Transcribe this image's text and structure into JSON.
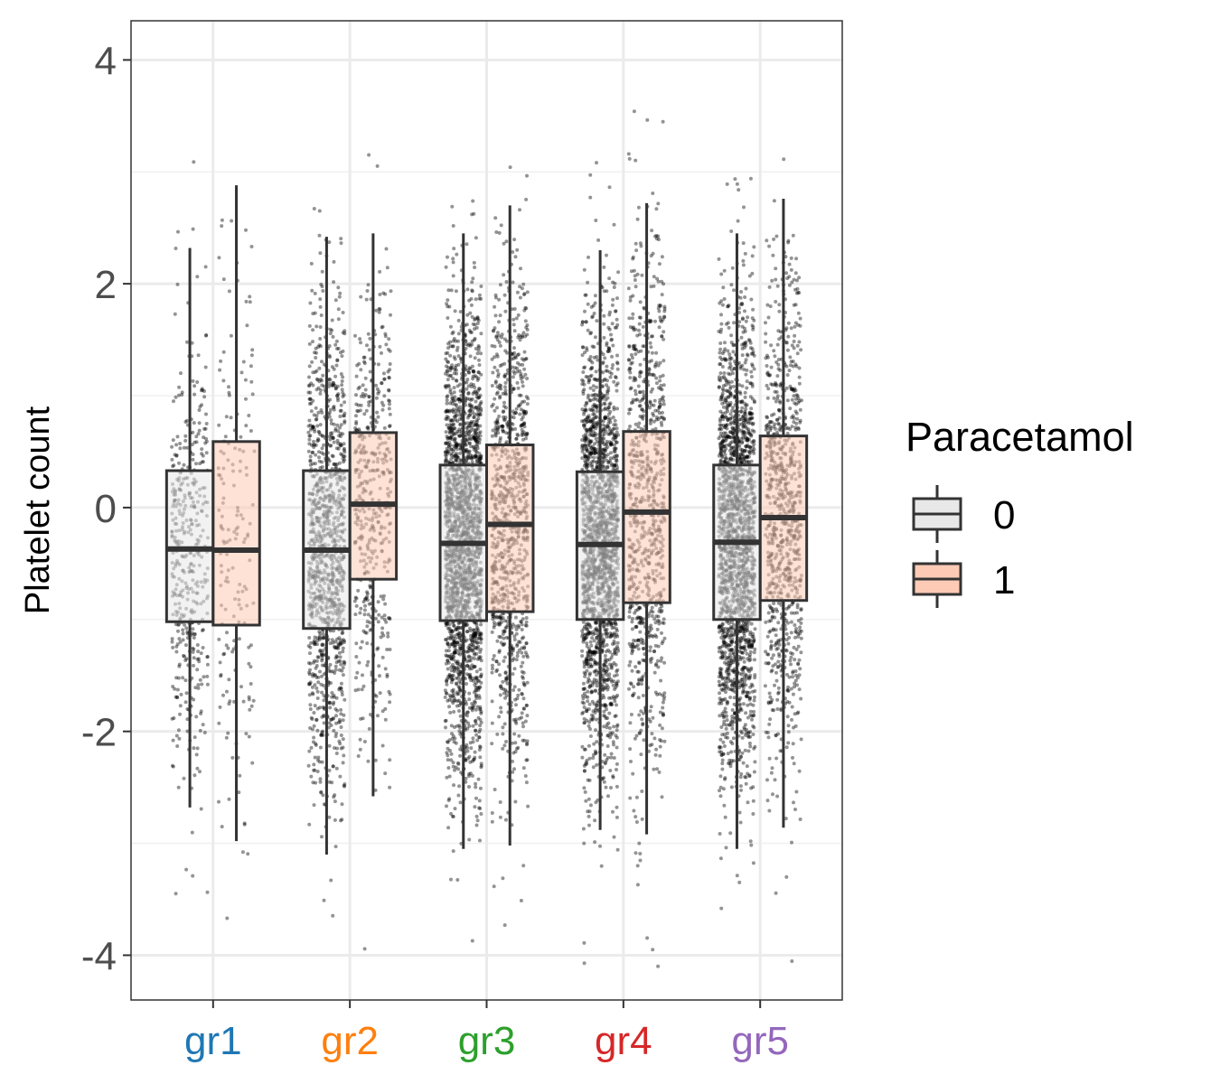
{
  "chart_data": {
    "type": "boxplot",
    "title": "",
    "xlabel": "",
    "ylabel": "Platelet count",
    "ylim": [
      -4.4,
      4.35
    ],
    "y_ticks": [
      -4,
      -2,
      0,
      2,
      4
    ],
    "y_tick_labels": [
      "-4",
      "-2",
      "0",
      "2",
      "4"
    ],
    "grid": true,
    "categories": [
      "gr1",
      "gr2",
      "gr3",
      "gr4",
      "gr5"
    ],
    "category_colors": [
      "#1f77b4",
      "#ff7f0e",
      "#2ca02c",
      "#d62728",
      "#9467bd"
    ],
    "legend": {
      "title": "Paracetamol",
      "position": "right",
      "entries": [
        {
          "label": "0",
          "fill": "#e8e8e8"
        },
        {
          "label": "1",
          "fill": "#fdcbb5"
        }
      ]
    },
    "series": [
      {
        "name": "0",
        "fill": "#e8e8e8",
        "boxes": [
          {
            "whisker_low": -2.68,
            "q1": -1.02,
            "median": -0.37,
            "q3": 0.33,
            "whisker_high": 2.32,
            "density": 0.2
          },
          {
            "whisker_low": -3.1,
            "q1": -1.08,
            "median": -0.38,
            "q3": 0.33,
            "whisker_high": 2.42,
            "density": 0.55
          },
          {
            "whisker_low": -3.05,
            "q1": -1.01,
            "median": -0.32,
            "q3": 0.38,
            "whisker_high": 2.45,
            "density": 1.0
          },
          {
            "whisker_low": -2.88,
            "q1": -1.0,
            "median": -0.33,
            "q3": 0.32,
            "whisker_high": 2.3,
            "density": 0.9
          },
          {
            "whisker_low": -3.05,
            "q1": -1.0,
            "median": -0.31,
            "q3": 0.38,
            "whisker_high": 2.45,
            "density": 0.95
          }
        ]
      },
      {
        "name": "1",
        "fill": "#fdcbb5",
        "boxes": [
          {
            "whisker_low": -2.98,
            "q1": -1.05,
            "median": -0.38,
            "q3": 0.59,
            "whisker_high": 2.88,
            "density": 0.08
          },
          {
            "whisker_low": -2.58,
            "q1": -0.64,
            "median": 0.03,
            "q3": 0.67,
            "whisker_high": 2.45,
            "density": 0.22
          },
          {
            "whisker_low": -3.02,
            "q1": -0.93,
            "median": -0.15,
            "q3": 0.56,
            "whisker_high": 2.7,
            "density": 0.45
          },
          {
            "whisker_low": -2.92,
            "q1": -0.85,
            "median": -0.04,
            "q3": 0.68,
            "whisker_high": 2.72,
            "density": 0.4
          },
          {
            "whisker_low": -2.86,
            "q1": -0.83,
            "median": -0.09,
            "q3": 0.64,
            "whisker_high": 2.76,
            "density": 0.42
          }
        ]
      }
    ]
  }
}
